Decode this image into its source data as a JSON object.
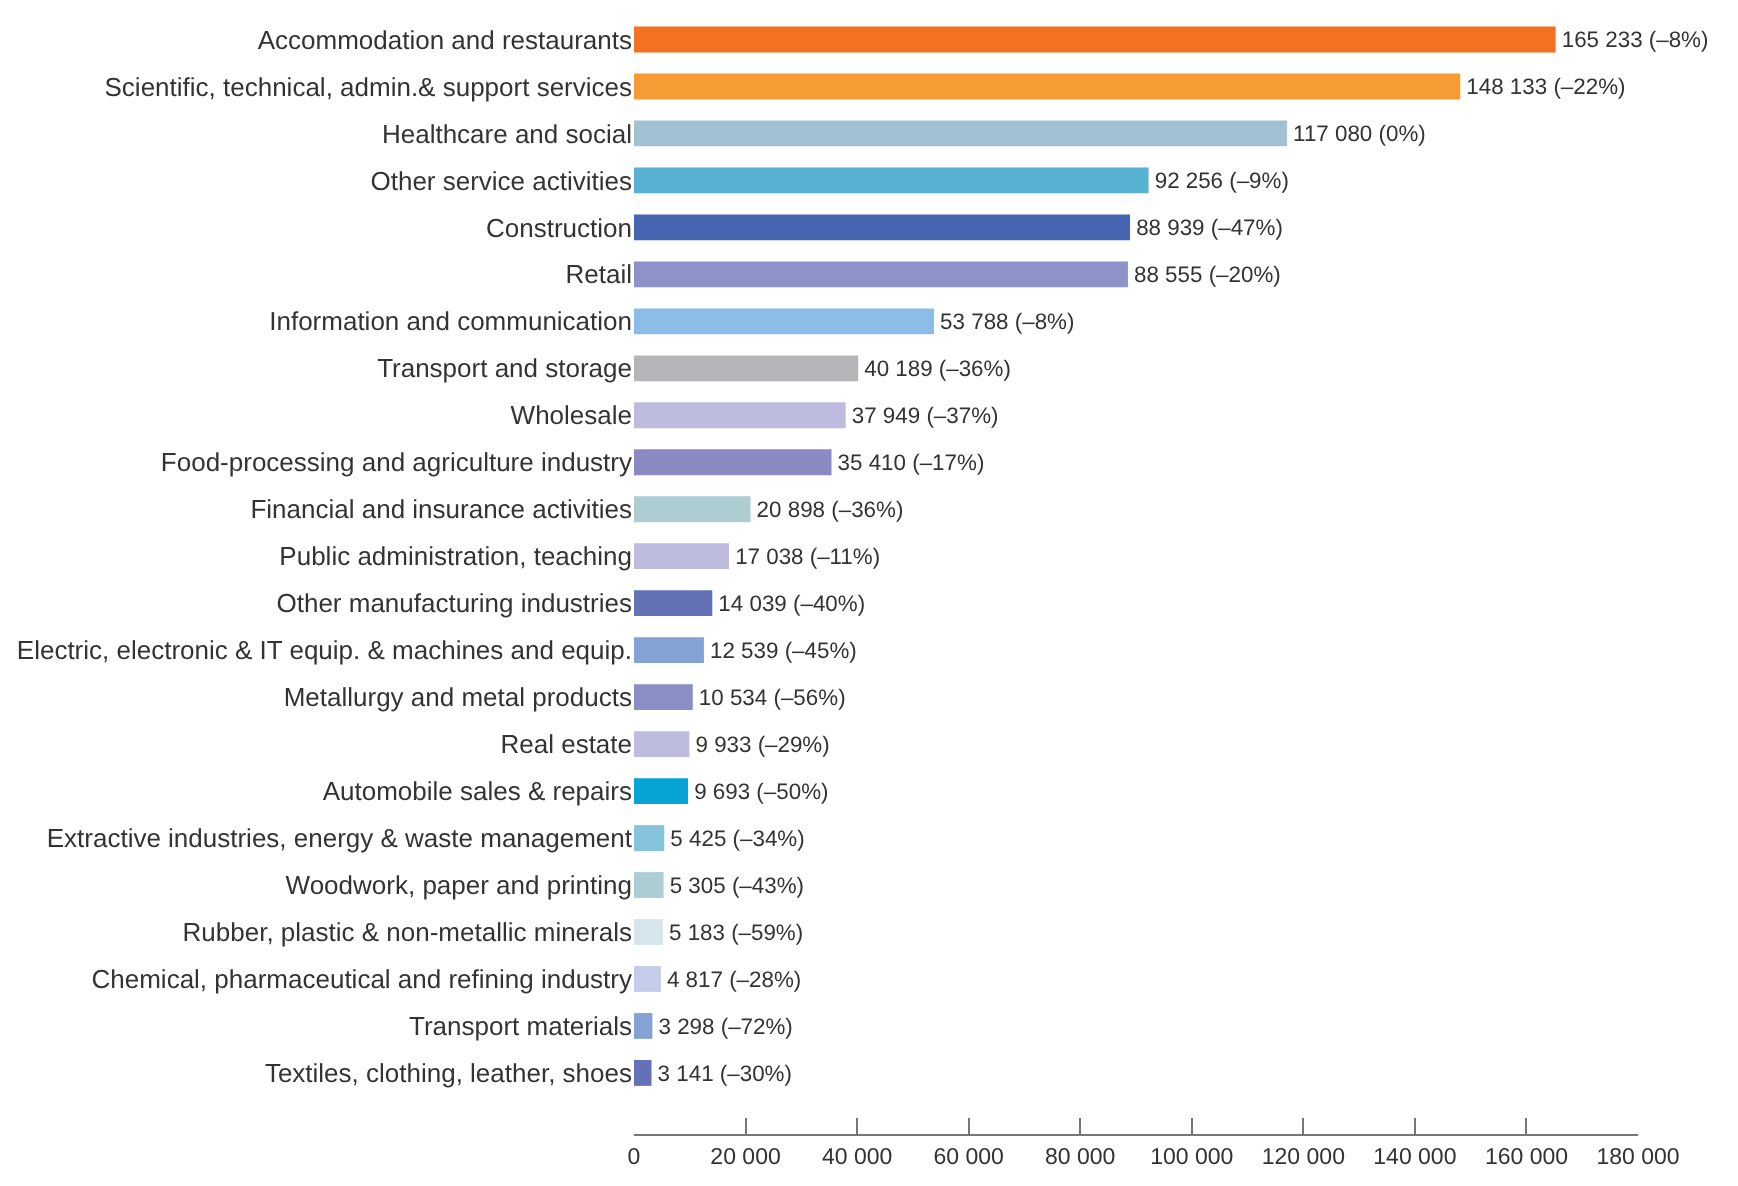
{
  "chart_data": {
    "type": "bar",
    "orientation": "horizontal",
    "categories": [
      "Accommodation and restaurants",
      "Scientific, technical, admin.& support services",
      "Healthcare and social",
      "Other service activities",
      "Construction",
      "Retail",
      "Information and communication",
      "Transport and storage",
      "Wholesale",
      "Food-processing and agriculture industry",
      "Financial and insurance activities",
      "Public administration, teaching",
      "Other manufacturing industries",
      "Electric, electronic & IT equip. & machines and equip.",
      "Metallurgy and metal products",
      "Real estate",
      "Automobile sales & repairs",
      "Extractive industries, energy & waste management",
      "Woodwork, paper and printing",
      "Rubber, plastic & non-metallic minerals",
      "Chemical, pharmaceutical and refining industry",
      "Transport materials",
      "Textiles, clothing, leather, shoes"
    ],
    "values": [
      165233,
      148133,
      117080,
      92256,
      88939,
      88555,
      53788,
      40189,
      37949,
      35410,
      20898,
      17038,
      14039,
      12539,
      10534,
      9933,
      9693,
      5425,
      5305,
      5183,
      4817,
      3298,
      3141
    ],
    "value_labels": [
      "165 233 (–8%)",
      "148 133 (–22%)",
      "117 080 (0%)",
      "92 256 (–9%)",
      "88 939 (–47%)",
      "88 555 (–20%)",
      "53 788 (–8%)",
      "40 189 (–36%)",
      "37 949 (–37%)",
      "35 410 (–17%)",
      "20 898 (–36%)",
      "17 038 (–11%)",
      "14 039 (–40%)",
      "12 539 (–45%)",
      "10 534 (–56%)",
      "9 933 (–29%)",
      "9 693 (–50%)",
      "5 425 (–34%)",
      "5 305 (–43%)",
      "5 183 (–59%)",
      "4 817 (–28%)",
      "3 298 (–72%)",
      "3 141 (–30%)"
    ],
    "colors": [
      "#f47023",
      "#f79c34",
      "#a2c1d2",
      "#58b0d3",
      "#4565b0",
      "#8d93c9",
      "#8bbde6",
      "#b4b5b9",
      "#bdbcde",
      "#8a89c2",
      "#aecdd3",
      "#bdbcde",
      "#6571b6",
      "#84a3d4",
      "#8b8ec4",
      "#bdbcde",
      "#06a4d6",
      "#86c3df",
      "#adcdd4",
      "#d7e5ee",
      "#c3cce8",
      "#84a3d4",
      "#6571b6"
    ],
    "xlim": [
      0,
      180000
    ],
    "xticks": [
      0,
      {
        "value": 20000,
        "label": "20 000"
      },
      {
        "value": 40000,
        "label": "40 000"
      },
      {
        "value": 60000,
        "label": "60 000"
      },
      {
        "value": 80000,
        "label": "80 000"
      },
      {
        "value": 100000,
        "label": "100 000"
      },
      {
        "value": 120000,
        "label": "120 000"
      },
      {
        "value": 140000,
        "label": "140 000"
      },
      {
        "value": 160000,
        "label": "160 000"
      },
      {
        "value": 180000,
        "label": "180 000"
      }
    ]
  }
}
